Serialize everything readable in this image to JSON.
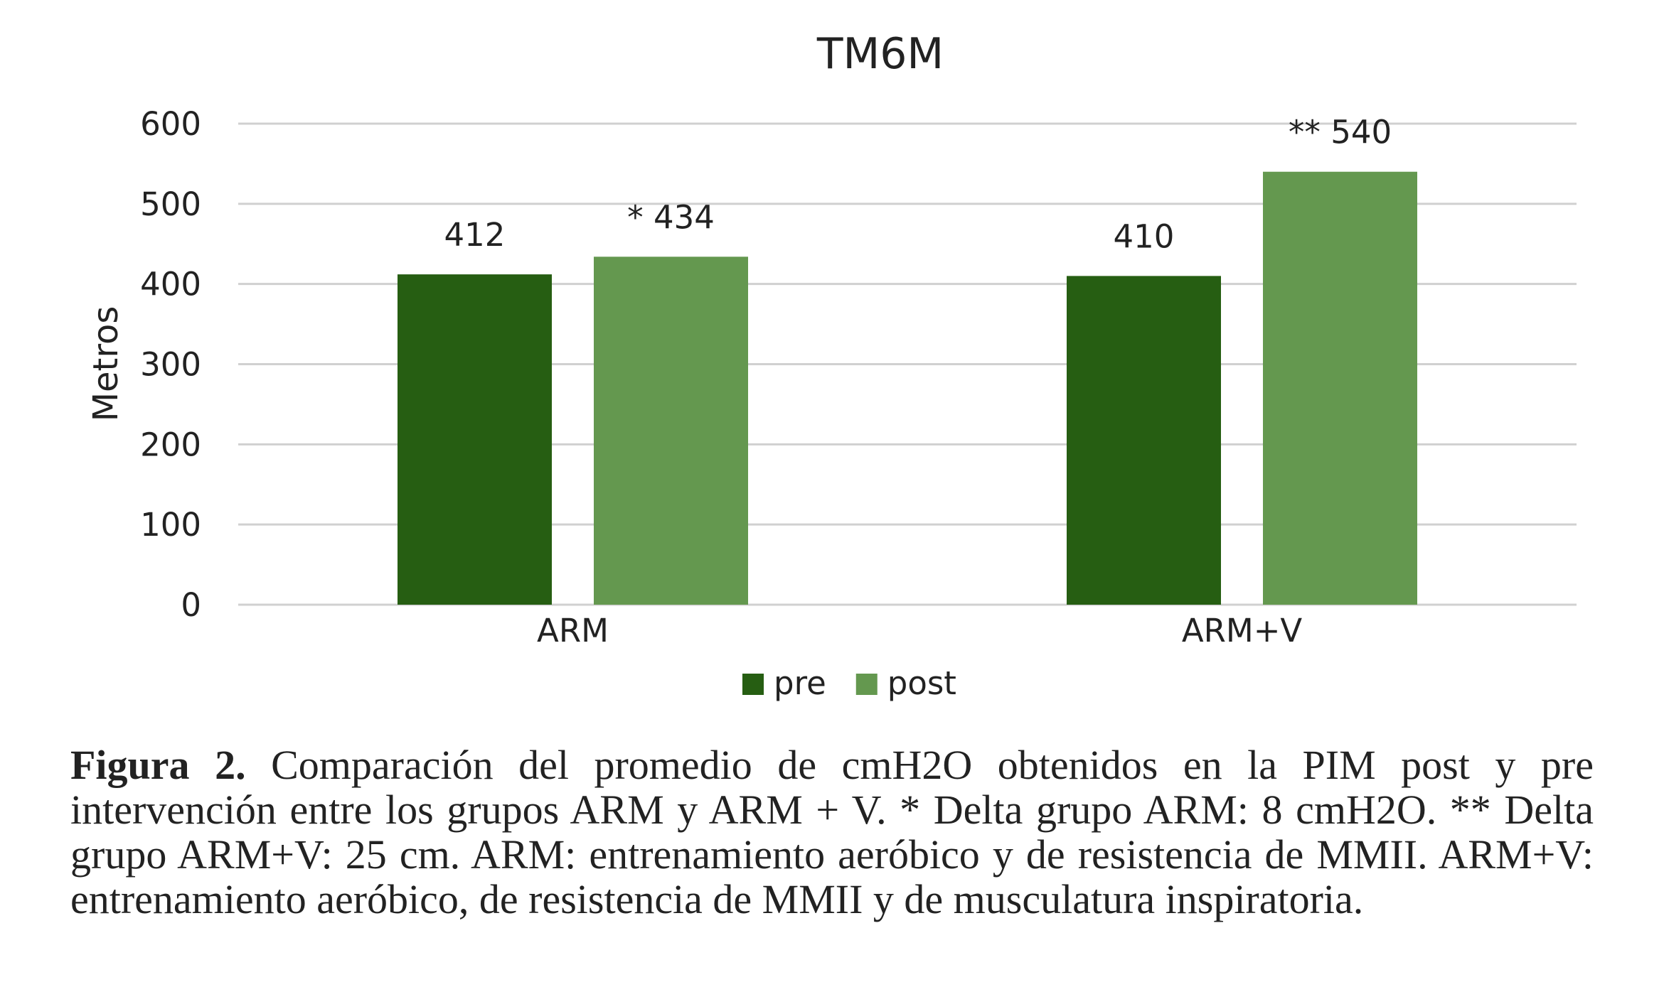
{
  "chart_data": {
    "type": "bar",
    "title": "TM6M",
    "ylabel": "Metros",
    "xlabel": "",
    "categories": [
      "ARM",
      "ARM+V"
    ],
    "series": [
      {
        "name": "pre",
        "values": [
          412,
          410
        ],
        "labels": [
          "412",
          "410"
        ],
        "color": "#265e12"
      },
      {
        "name": "post",
        "values": [
          434,
          540
        ],
        "labels": [
          "* 434",
          "** 540"
        ],
        "color": "#64984f"
      }
    ],
    "ylim": [
      0,
      600
    ],
    "yticks": [
      0,
      100,
      200,
      300,
      400,
      500,
      600
    ],
    "grid": true,
    "legend_position": "bottom"
  },
  "caption": {
    "label": "Figura 2.",
    "text": " Comparación del promedio de cmH2O obtenidos en la PIM post y pre intervención entre los grupos ARM y ARM + V. * Delta grupo ARM: 8 cmH2O. ** Delta grupo ARM+V: 25 cm. ARM: entrenamiento aeróbico y de resistencia de MMII. ARM+V: entrenamiento aeróbico, de resistencia de MMII y de musculatura inspiratoria."
  }
}
